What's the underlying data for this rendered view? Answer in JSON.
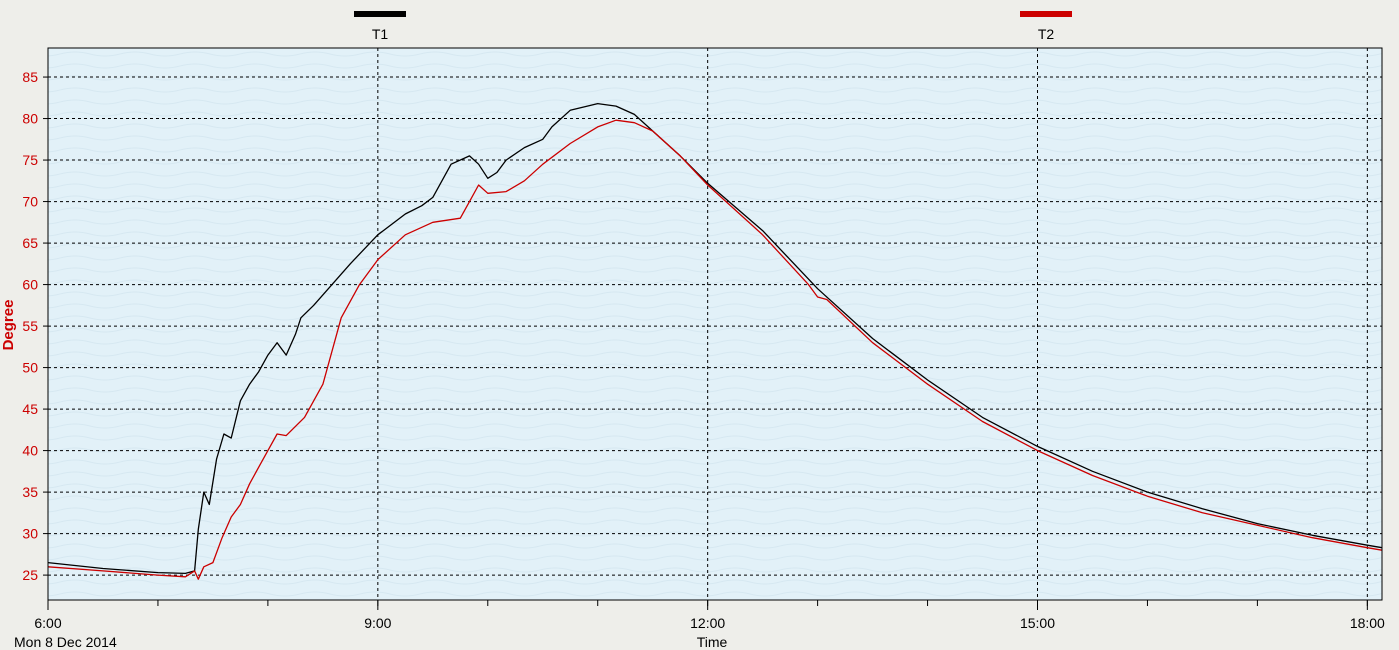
{
  "chart_data": {
    "type": "line",
    "date_label": "Mon 8 Dec 2014",
    "xlabel": "Time",
    "ylabel": "Degree",
    "xlim": [
      "06:00",
      "18:08"
    ],
    "ylim": [
      22,
      88.5
    ],
    "x_ticks": [
      "6:00",
      "9:00",
      "12:00",
      "15:00",
      "18:00"
    ],
    "y_ticks": [
      25,
      30,
      35,
      40,
      45,
      50,
      55,
      60,
      65,
      70,
      75,
      80,
      85
    ],
    "grid": true,
    "legend_position": "top",
    "colors": {
      "T1": "#000000",
      "T2": "#cc0000",
      "ytick": "#cc0000",
      "plot_bg": "#e2f1f8",
      "page_bg": "#eeeeea"
    },
    "series": [
      {
        "name": "T1",
        "x": [
          "06:00",
          "06:30",
          "07:00",
          "07:15",
          "07:20",
          "07:22",
          "07:25",
          "07:28",
          "07:32",
          "07:36",
          "07:40",
          "07:45",
          "07:50",
          "07:55",
          "08:00",
          "08:05",
          "08:10",
          "08:15",
          "08:18",
          "08:25",
          "08:35",
          "08:45",
          "09:00",
          "09:15",
          "09:24",
          "09:30",
          "09:40",
          "09:50",
          "09:55",
          "10:00",
          "10:05",
          "10:10",
          "10:20",
          "10:30",
          "10:35",
          "10:45",
          "11:00",
          "11:10",
          "11:20",
          "11:30",
          "11:45",
          "12:00",
          "12:30",
          "13:00",
          "13:30",
          "14:00",
          "14:30",
          "15:00",
          "15:30",
          "16:00",
          "16:30",
          "17:00",
          "17:30",
          "18:00",
          "18:08"
        ],
        "y": [
          26.5,
          25.8,
          25.3,
          25.2,
          25.5,
          30.5,
          35,
          33.5,
          39,
          42,
          41.5,
          46,
          48,
          49.5,
          51.5,
          53,
          51.5,
          54,
          56,
          57.5,
          60,
          62.5,
          66,
          68.5,
          69.5,
          70.5,
          74.5,
          75.5,
          74.5,
          72.8,
          73.5,
          75,
          76.5,
          77.5,
          79,
          81,
          81.8,
          81.5,
          80.5,
          78.5,
          75.5,
          72.2,
          66.5,
          59.5,
          53.5,
          48.5,
          44,
          40.5,
          37.5,
          35,
          33,
          31.2,
          29.8,
          28.6,
          28.3
        ]
      },
      {
        "name": "T2",
        "x": [
          "06:00",
          "06:30",
          "07:00",
          "07:15",
          "07:20",
          "07:22",
          "07:25",
          "07:30",
          "07:35",
          "07:40",
          "07:45",
          "07:50",
          "07:55",
          "08:00",
          "08:05",
          "08:10",
          "08:20",
          "08:30",
          "08:40",
          "08:50",
          "09:00",
          "09:15",
          "09:30",
          "09:45",
          "09:50",
          "09:55",
          "10:00",
          "10:10",
          "10:20",
          "10:30",
          "10:45",
          "11:00",
          "11:10",
          "11:20",
          "11:30",
          "11:45",
          "12:00",
          "12:30",
          "12:55",
          "13:00",
          "13:05",
          "13:30",
          "14:00",
          "14:30",
          "15:00",
          "15:30",
          "16:00",
          "16:30",
          "17:00",
          "17:30",
          "18:00",
          "18:08"
        ],
        "y": [
          26,
          25.5,
          25,
          24.8,
          25.5,
          24.5,
          26,
          26.5,
          29.5,
          32,
          33.5,
          36,
          38,
          40,
          42,
          41.8,
          44,
          48,
          56,
          60,
          63,
          66,
          67.5,
          68,
          70,
          72,
          71,
          71.2,
          72.5,
          74.5,
          77,
          79,
          79.8,
          79.5,
          78.5,
          75.5,
          72,
          66,
          60,
          58.5,
          58.2,
          53,
          48,
          43.5,
          40,
          37,
          34.5,
          32.5,
          31,
          29.5,
          28.3,
          28
        ]
      }
    ]
  }
}
